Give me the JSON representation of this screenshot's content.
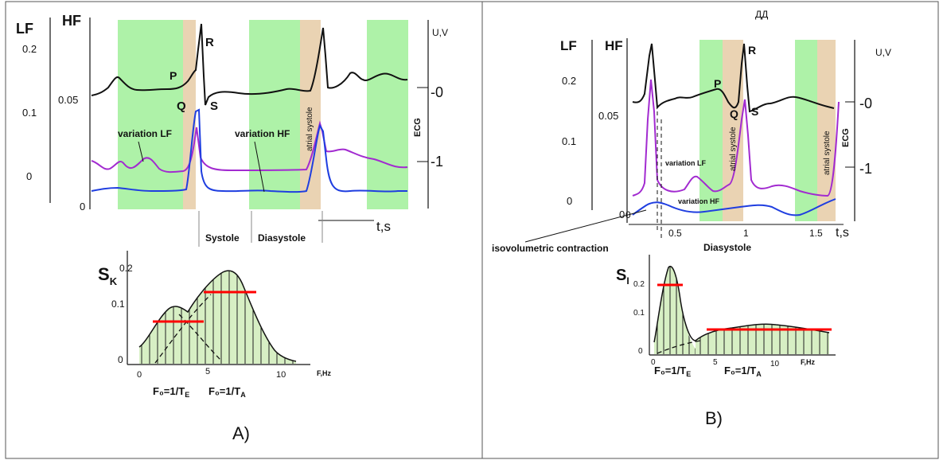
{
  "colors": {
    "green_band": "#aef2a8",
    "tan_band": "#ead3b3",
    "ecg": "#111111",
    "variation_lf": "#a22bd0",
    "variation_hf": "#1f3ee0",
    "marker": "#ff0000",
    "hatch_fill": "#d7efc4",
    "frame": "#555555"
  },
  "panel_a": {
    "label": "A)",
    "axes": {
      "lf": "LF",
      "hf": "HF",
      "uv": "U,V",
      "ecg": "ECG",
      "time": "t,s",
      "lf_ticks": [
        "0.2",
        "0.1",
        "0"
      ],
      "hf_ticks": [
        "0.05",
        "0"
      ],
      "uv_ticks": [
        "-0",
        "-1"
      ]
    },
    "wave_labels": {
      "p": "P",
      "q": "Q",
      "r": "R",
      "s": "S"
    },
    "curve_labels": {
      "variation_lf": "variation LF",
      "variation_hf": "variation HF"
    },
    "band_labels": {
      "atrial_systole": "atrial systole"
    },
    "phase_labels": {
      "systole": "Systole",
      "diasystole": "Diasystole"
    },
    "spectrum": {
      "label_base": "S",
      "label_sub": "K",
      "y_ticks": [
        "0.2",
        "0.1",
        "0"
      ],
      "x_ticks": [
        "0",
        "5",
        "10"
      ],
      "x_unit": "F,Hz",
      "f_e_label": "F₀=1/T",
      "f_e_sub": "E",
      "f_a_label": "F₀=1/T",
      "f_a_sub": "A"
    }
  },
  "panel_b": {
    "label": "B)",
    "header_text": "ДД",
    "axes": {
      "lf": "LF",
      "hf": "HF",
      "uv": "U,V",
      "ecg": "ECG",
      "time": "t,s",
      "lf_ticks": [
        "0.2",
        "0.1",
        "0"
      ],
      "hf_ticks": [
        "0.05",
        "0"
      ],
      "uv_ticks": [
        "-0",
        "-1"
      ],
      "time_ticks": [
        "0.5",
        "1",
        "1.5"
      ]
    },
    "wave_labels": {
      "p": "P",
      "q": "Q",
      "r": "R",
      "s": "S"
    },
    "curve_labels": {
      "variation_lf": "variation LF",
      "variation_hf": "variation HF"
    },
    "band_labels": {
      "atrial_systole_1": "atrial systole",
      "atrial_systole_2": "atrial systole"
    },
    "phase_labels": {
      "isovolumetric": "isovolumetric contraction",
      "diasystole": "Diasystole"
    },
    "spectrum": {
      "label_base": "S",
      "label_sub": "I",
      "y_ticks": [
        "0.2",
        "0.1",
        "0"
      ],
      "x_ticks": [
        "0",
        "5",
        "10"
      ],
      "x_unit": "F,Hz",
      "f_e_label": "F₀=1/T",
      "f_e_sub": "E",
      "f_a_label": "F₀=1/T",
      "f_a_sub": "A"
    }
  }
}
